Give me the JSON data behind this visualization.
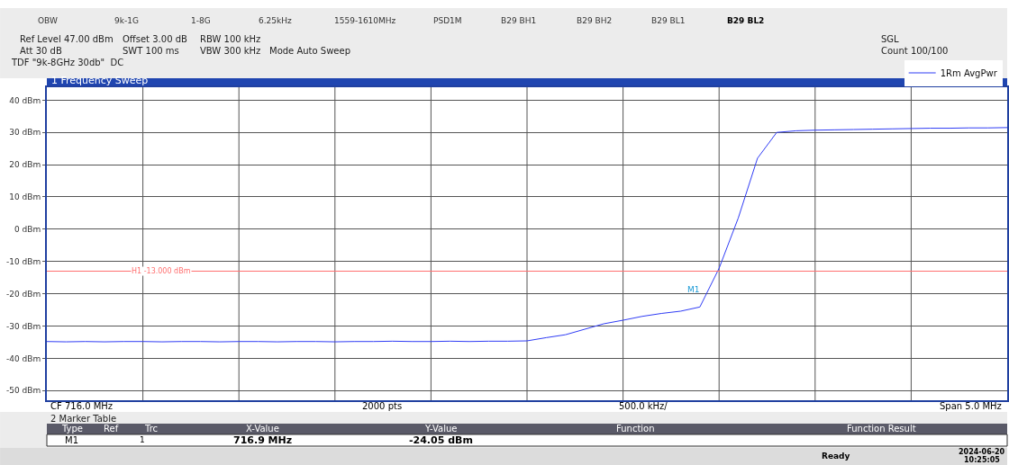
{
  "chart_data": {
    "type": "line",
    "title": "1 Frequency Sweep",
    "categories": [
      null,
      null,
      null,
      null,
      null,
      null,
      null,
      null,
      null,
      null,
      null,
      null,
      null,
      null,
      null,
      null,
      null,
      null,
      null,
      null,
      null,
      null,
      null,
      null,
      null,
      null,
      null,
      null,
      null,
      null,
      null,
      null,
      null,
      null,
      null,
      null,
      null,
      null,
      null,
      null,
      null,
      null,
      null,
      null,
      null,
      null,
      null,
      null,
      null,
      null,
      null
    ],
    "series": [
      {
        "name": "1Rm AvgPwr",
        "color": "#2f3cf5",
        "values": [
          -34.8,
          -34.9,
          -34.8,
          -34.9,
          -34.8,
          -34.8,
          -34.9,
          -34.8,
          -34.8,
          -34.9,
          -34.8,
          -34.8,
          -34.9,
          -34.8,
          -34.8,
          -34.9,
          -34.8,
          -34.8,
          -34.7,
          -34.8,
          -34.8,
          -34.7,
          -34.8,
          -34.7,
          -34.7,
          -34.6,
          -33.6,
          -32.7,
          -31.0,
          -29.3,
          -28.2,
          -27.0,
          -26.1,
          -25.4,
          -24.1,
          -12.1,
          3.5,
          22.0,
          30.0,
          30.5,
          30.7,
          30.8,
          30.9,
          31.0,
          31.1,
          31.2,
          31.3,
          31.3,
          31.4,
          31.4,
          31.5
        ]
      }
    ],
    "ylim": [
      -53,
      44
    ],
    "yticks": [
      {
        "value": 40,
        "label": "40 dBm"
      },
      {
        "value": 30,
        "label": "30 dBm"
      },
      {
        "value": 20,
        "label": "20 dBm"
      },
      {
        "value": 10,
        "label": "10 dBm"
      },
      {
        "value": 0,
        "label": "0 dBm"
      },
      {
        "value": -10,
        "label": "-10 dBm"
      },
      {
        "value": -20,
        "label": "-20 dBm"
      },
      {
        "value": -30,
        "label": "-30 dBm"
      },
      {
        "value": -40,
        "label": "-40 dBm"
      },
      {
        "value": -50,
        "label": "-50 dBm"
      }
    ],
    "tick_labels": "y",
    "grid": true,
    "legend": "top right",
    "marker": "none",
    "line_style": "solid",
    "ref_lines": [
      {
        "axis": "y",
        "value": -13,
        "label": "H1 -13.000 dBm",
        "color": "#ff7070",
        "line_style": "solid"
      }
    ],
    "annotations": [
      "OBW",
      "9k-1G",
      "1-8G",
      "6.25kHz",
      "1559-1610MHz",
      "PSD1M",
      "B29 BH1",
      "B29 BH2",
      "B29 BL1",
      "B29 BL2",
      "Ref Level 47.00 dBm",
      "Offset 3.00 dB",
      "RBW 100 kHz",
      "Att 30 dB",
      "SWT 100 ms",
      "VBW 300 kHz",
      "Mode Auto Sweep",
      "TDF \"9k-8GHz 30db\"  DC",
      "SGL",
      "Count 100/100",
      "CF 716.0 MHz",
      "2000 pts",
      "500.0 kHz/",
      "Span 5.0 MHz",
      "2 Marker Table",
      "Type",
      "Ref",
      "Trc",
      "X-Value",
      "Y-Value",
      "Function",
      "Function Result",
      "M1",
      "1",
      "716.9 MHz",
      "-24.05 dBm",
      "Ready",
      "2024-06-20",
      "10:25:05",
      "M1"
    ]
  }
}
